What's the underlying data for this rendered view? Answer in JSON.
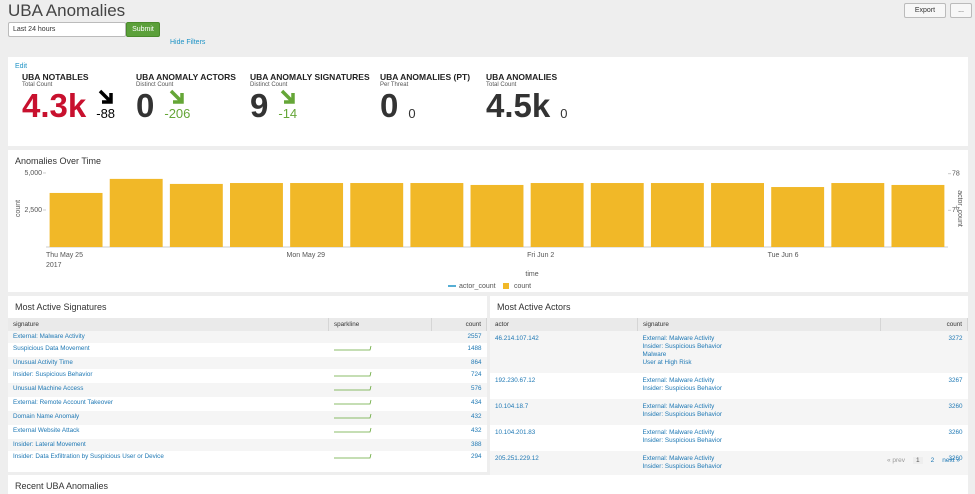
{
  "header": {
    "title": "UBA Anomalies",
    "export": "Export",
    "more": "...",
    "time_range": "Last 24 hours",
    "submit": "Submit",
    "hide_filters": "Hide Filters",
    "edit": "Edit"
  },
  "singles": [
    {
      "title": "UBA NOTABLES",
      "subtitle": "Total Count",
      "value": "4.3k",
      "delta": -88,
      "color": "#c8102e",
      "delta_color": "#000000"
    },
    {
      "title": "UBA ANOMALY ACTORS",
      "subtitle": "Distinct Count",
      "value": "0",
      "delta": -206,
      "color": "#333333",
      "delta_color": "#65a637"
    },
    {
      "title": "UBA ANOMALY SIGNATURES",
      "subtitle": "Distinct Count",
      "value": "9",
      "delta": -14,
      "color": "#333333",
      "delta_color": "#65a637"
    },
    {
      "title": "UBA ANOMALIES (PT)",
      "subtitle": "Per Threat",
      "value": "0",
      "delta": 0,
      "color": "#333333",
      "delta_color": "#333333"
    },
    {
      "title": "UBA ANOMALIES",
      "subtitle": "Total Count",
      "value": "4.5k",
      "delta": 0,
      "color": "#333333",
      "delta_color": "#333333"
    }
  ],
  "chart": {
    "type": "bar",
    "title": "Anomalies Over Time",
    "categories": [
      "Thu May 25",
      null,
      null,
      null,
      "Mon May 29",
      null,
      null,
      null,
      "Fri Jun 2",
      null,
      null,
      null,
      "Tue Jun 6",
      null,
      null
    ],
    "year_label": "2017",
    "x_label": "time",
    "y_label": "count",
    "y2_label": "actor_count",
    "series": [
      {
        "name": "actor_count",
        "color": "#1e93c6",
        "axis": "y2",
        "values": [
          null,
          null,
          null,
          null,
          null,
          null,
          null,
          null,
          null,
          null,
          null,
          null,
          null,
          null,
          null
        ]
      },
      {
        "name": "count",
        "color": "#f1b828",
        "values": [
          3650,
          4600,
          4260,
          4320,
          4320,
          4320,
          4320,
          4190,
          4320,
          4320,
          4320,
          4320,
          4050,
          4320,
          4190
        ]
      }
    ],
    "ylim": [
      0,
      5200
    ],
    "yticks": [
      {
        "value": 2500,
        "label": "2,500"
      },
      {
        "value": 5000,
        "label": "5,000"
      }
    ],
    "y2lim": [
      76,
      78.1
    ],
    "y2ticks": [
      77,
      78
    ],
    "legend": "bottom"
  },
  "signatures": {
    "title": "Most Active Signatures",
    "columns": [
      "signature",
      "sparkline",
      "count"
    ],
    "rows": [
      [
        "External: Malware Activity",
        2557
      ],
      [
        "Suspicious Data Movement",
        1488
      ],
      [
        "Unusual Activity Time",
        864
      ],
      [
        "Insider: Suspicious Behavior",
        724
      ],
      [
        "Unusual Machine Access",
        576
      ],
      [
        "External: Remote Account Takeover",
        434
      ],
      [
        "Domain Name Anomaly",
        432
      ],
      [
        "External Website Attack",
        432
      ],
      [
        "Insider: Lateral Movement",
        388
      ],
      [
        "Insider: Data Exfiltration by Suspicious User or Device",
        294
      ]
    ]
  },
  "actors": {
    "title": "Most Active Actors",
    "columns": [
      "actor",
      "signature",
      "count"
    ],
    "rows": [
      [
        "46.214.107.142",
        [
          "External: Malware Activity",
          "Insider: Suspicious Behavior",
          "Malware",
          "User at High Risk"
        ],
        3272
      ],
      [
        "192.230.67.12",
        [
          "External: Malware Activity",
          "Insider: Suspicious Behavior"
        ],
        3267
      ],
      [
        "10.104.18.7",
        [
          "External: Malware Activity",
          "Insider: Suspicious Behavior"
        ],
        3260
      ],
      [
        "10.104.201.83",
        [
          "External: Malware Activity",
          "Insider: Suspicious Behavior"
        ],
        3260
      ],
      [
        "205.251.229.12",
        [
          "External: Malware Activity",
          "Insider: Suspicious Behavior"
        ],
        3260
      ]
    ],
    "pager": [
      "« prev",
      "1",
      "2",
      "next »"
    ]
  },
  "recent": {
    "title": "Recent UBA Anomalies"
  }
}
